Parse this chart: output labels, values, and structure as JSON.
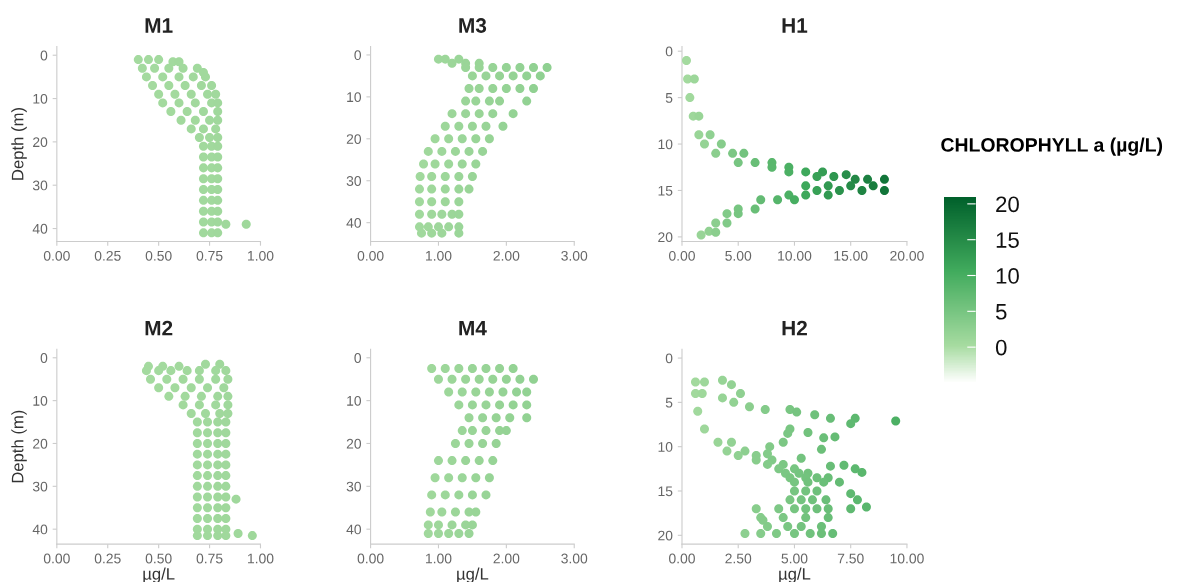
{
  "chart_data": [
    {
      "type": "scatter",
      "title": "M1",
      "ylabel": "Depth (m)",
      "marker": "circle",
      "xlim": [
        0,
        1
      ],
      "ylim": [
        43,
        -2
      ],
      "xticks": [
        {
          "value": 0,
          "label": "0.00"
        },
        {
          "value": 0.25,
          "label": "0.25"
        },
        {
          "value": 0.5,
          "label": "0.50"
        },
        {
          "value": 0.75,
          "label": "0.75"
        },
        {
          "value": 1,
          "label": "1.00"
        }
      ],
      "yticks": [
        0,
        10,
        20,
        30,
        40
      ],
      "x": [
        0.4,
        0.45,
        0.5,
        0.57,
        0.6,
        0.42,
        0.48,
        0.55,
        0.62,
        0.69,
        0.72,
        0.44,
        0.52,
        0.6,
        0.67,
        0.73,
        0.47,
        0.55,
        0.63,
        0.71,
        0.76,
        0.5,
        0.58,
        0.66,
        0.74,
        0.78,
        0.52,
        0.6,
        0.68,
        0.76,
        0.79,
        0.56,
        0.64,
        0.72,
        0.79,
        0.61,
        0.68,
        0.75,
        0.79,
        0.66,
        0.72,
        0.78,
        0.7,
        0.75,
        0.79,
        0.72,
        0.76,
        0.79,
        0.72,
        0.76,
        0.79,
        0.72,
        0.76,
        0.79,
        0.72,
        0.76,
        0.79,
        0.72,
        0.76,
        0.79,
        0.72,
        0.76,
        0.79,
        0.72,
        0.76,
        0.79,
        0.72,
        0.76,
        0.79,
        0.72,
        0.76,
        0.79,
        0.83,
        0.93
      ],
      "values": [
        1,
        1,
        1,
        1.5,
        1.5,
        3,
        3,
        3,
        3,
        3,
        4,
        5,
        5,
        5,
        5,
        5,
        7,
        7,
        7,
        7,
        7,
        9,
        9,
        9,
        9,
        9,
        11,
        11,
        11,
        11,
        11,
        13,
        13,
        13,
        13,
        15,
        15,
        15,
        15,
        17,
        17,
        17,
        19,
        19,
        19,
        21,
        21,
        21,
        23.5,
        23.5,
        23.5,
        26,
        26,
        26,
        28.5,
        28.5,
        28.5,
        31,
        31,
        31,
        33.5,
        33.5,
        33.5,
        36,
        36,
        36,
        38.5,
        38.5,
        38.5,
        41,
        41,
        41,
        39,
        39
      ]
    },
    {
      "type": "scatter",
      "title": "M3",
      "marker": "circle",
      "xlim": [
        0,
        3
      ],
      "ylim": [
        44.5,
        -2
      ],
      "xticks": [
        {
          "value": 0,
          "label": "0.00"
        },
        {
          "value": 1,
          "label": "1.00"
        },
        {
          "value": 2,
          "label": "2.00"
        },
        {
          "value": 3,
          "label": "3.00"
        }
      ],
      "yticks": [
        0,
        10,
        20,
        30,
        40
      ],
      "x": [
        1.0,
        1.1,
        1.3,
        1.2,
        1.4,
        1.6,
        1.4,
        1.6,
        1.8,
        2.0,
        2.2,
        2.4,
        2.6,
        1.5,
        1.7,
        1.9,
        2.1,
        2.3,
        2.5,
        1.45,
        1.6,
        1.8,
        2.0,
        2.2,
        2.4,
        1.4,
        1.55,
        1.75,
        1.9,
        2.3,
        1.2,
        1.4,
        1.6,
        1.8,
        2.1,
        1.1,
        1.3,
        1.5,
        1.7,
        1.95,
        0.95,
        1.15,
        1.35,
        1.55,
        1.75,
        0.85,
        1.05,
        1.25,
        1.45,
        1.65,
        0.78,
        0.95,
        1.15,
        1.35,
        1.55,
        0.73,
        0.9,
        1.1,
        1.3,
        1.5,
        0.72,
        0.9,
        1.1,
        1.3,
        1.45,
        0.72,
        0.9,
        1.1,
        1.3,
        0.72,
        0.9,
        1.05,
        1.2,
        1.3,
        0.72,
        0.85,
        1.0,
        1.15,
        1.3,
        0.75,
        0.9,
        1.05,
        1.3
      ],
      "values": [
        1,
        1,
        1,
        2,
        2,
        2,
        3,
        3,
        3,
        3,
        3,
        3,
        3,
        5,
        5,
        5,
        5,
        5,
        5,
        8,
        8,
        8,
        8,
        8,
        8,
        11,
        11,
        11,
        11,
        11,
        14,
        14,
        14,
        14,
        14,
        17,
        17,
        17,
        17,
        17,
        20,
        20,
        20,
        20,
        20,
        23,
        23,
        23,
        23,
        23,
        26,
        26,
        26,
        26,
        26,
        29,
        29,
        29,
        29,
        29,
        32,
        32,
        32,
        32,
        32,
        35,
        35,
        35,
        35,
        38,
        38,
        38,
        38,
        38,
        41,
        41,
        41,
        41,
        41,
        42.5,
        42.5,
        42.5,
        42.5
      ]
    },
    {
      "type": "scatter",
      "title": "H1",
      "marker": "circle",
      "xlim": [
        0,
        20
      ],
      "ylim": [
        20.5,
        -0.5
      ],
      "clim": [
        -5,
        21
      ],
      "clabel": "CHLOROPHYLL a (µg/L)",
      "cticks": [
        0,
        5,
        10,
        15,
        20
      ],
      "xticks": [
        {
          "value": 0,
          "label": "0.00"
        },
        {
          "value": 5,
          "label": "5.00"
        },
        {
          "value": 10,
          "label": "10.00"
        },
        {
          "value": 15,
          "label": "15.00"
        },
        {
          "value": 20,
          "label": "20.00"
        }
      ],
      "yticks": [
        0,
        5,
        10,
        15,
        20
      ],
      "x": [
        0.4,
        0.5,
        1.1,
        0.7,
        1.0,
        1.5,
        1.5,
        2.5,
        2.0,
        3.5,
        3.0,
        4.5,
        5.5,
        5.0,
        6.5,
        8.0,
        8.0,
        9.5,
        9.5,
        11.0,
        12.5,
        12.0,
        13.5,
        14.6,
        15.4,
        16.5,
        18.0,
        11.0,
        13.0,
        15.0,
        17.0,
        12.0,
        14.0,
        16.0,
        18.0,
        9.5,
        11.0,
        13.0,
        7.0,
        8.5,
        10.0,
        5.0,
        6.5,
        4.0,
        5.0,
        3.0,
        4.0,
        2.4,
        3.0,
        1.7
      ],
      "values": [
        1,
        3,
        3,
        5,
        7,
        7,
        9,
        9,
        10,
        10,
        11,
        11,
        11,
        12,
        12,
        12,
        12.5,
        12.5,
        13,
        13,
        13,
        13.5,
        13.5,
        13.3,
        13.8,
        13.8,
        13.8,
        14.5,
        14.5,
        14.5,
        14.5,
        15,
        15,
        15,
        15,
        15.5,
        15.5,
        15.5,
        16,
        16,
        16,
        17,
        17,
        17.5,
        17.5,
        18.5,
        18.5,
        19.4,
        19.5,
        19.8
      ],
      "cvalues": [
        0.4,
        0.5,
        1.1,
        0.7,
        1.0,
        1.5,
        1.5,
        2.5,
        2.0,
        3.5,
        3.0,
        4.5,
        5.5,
        5.0,
        6.5,
        8.0,
        8.0,
        9.5,
        9.5,
        11.0,
        12.5,
        12.0,
        13.5,
        14.6,
        15.4,
        16.5,
        18.0,
        11.0,
        13.0,
        15.0,
        17.0,
        12.0,
        14.0,
        16.0,
        18.0,
        9.5,
        11.0,
        13.0,
        7.0,
        8.5,
        10.0,
        5.0,
        6.5,
        4.0,
        5.0,
        3.0,
        4.0,
        2.4,
        3.0,
        1.7
      ]
    },
    {
      "type": "scatter",
      "title": "M2",
      "xlabel": "µg/L",
      "ylabel": "Depth (m)",
      "marker": "circle",
      "xlim": [
        0,
        1
      ],
      "ylim": [
        43.5,
        -2
      ],
      "xticks": [
        {
          "value": 0,
          "label": "0.00"
        },
        {
          "value": 0.25,
          "label": "0.25"
        },
        {
          "value": 0.5,
          "label": "0.50"
        },
        {
          "value": 0.75,
          "label": "0.75"
        },
        {
          "value": 1,
          "label": "1.00"
        }
      ],
      "yticks": [
        0,
        10,
        20,
        30,
        40
      ],
      "x": [
        0.45,
        0.52,
        0.6,
        0.73,
        0.8,
        0.44,
        0.5,
        0.56,
        0.64,
        0.7,
        0.78,
        0.83,
        0.46,
        0.54,
        0.62,
        0.7,
        0.78,
        0.84,
        0.5,
        0.58,
        0.66,
        0.74,
        0.82,
        0.55,
        0.63,
        0.71,
        0.79,
        0.84,
        0.62,
        0.7,
        0.78,
        0.84,
        0.66,
        0.73,
        0.8,
        0.84,
        0.69,
        0.74,
        0.79,
        0.83,
        0.69,
        0.74,
        0.79,
        0.83,
        0.69,
        0.74,
        0.79,
        0.83,
        0.69,
        0.74,
        0.79,
        0.83,
        0.69,
        0.74,
        0.79,
        0.83,
        0.69,
        0.74,
        0.79,
        0.83,
        0.69,
        0.74,
        0.79,
        0.83,
        0.69,
        0.74,
        0.79,
        0.83,
        0.69,
        0.74,
        0.79,
        0.83,
        0.69,
        0.74,
        0.79,
        0.83,
        0.69,
        0.74,
        0.79,
        0.83,
        0.69,
        0.74,
        0.79,
        0.83,
        0.88,
        0.89,
        0.96
      ],
      "values": [
        2,
        2,
        2,
        1.5,
        1.5,
        3,
        3,
        3,
        3,
        3,
        3,
        3,
        5,
        5,
        5,
        5,
        5,
        5,
        7,
        7,
        7,
        7,
        7,
        9,
        9,
        9,
        9,
        9,
        11,
        11,
        11,
        11,
        13,
        13,
        13,
        13,
        15,
        15,
        15,
        15,
        17.5,
        17.5,
        17.5,
        17.5,
        20,
        20,
        20,
        20,
        22.5,
        22.5,
        22.5,
        22.5,
        25,
        25,
        25,
        25,
        27.5,
        27.5,
        27.5,
        27.5,
        30,
        30,
        30,
        30,
        32.5,
        32.5,
        32.5,
        32.5,
        35,
        35,
        35,
        35,
        37.5,
        37.5,
        37.5,
        37.5,
        40,
        40,
        40,
        40,
        41.5,
        41.5,
        41.5,
        41.5,
        33,
        41,
        41.5
      ]
    },
    {
      "type": "scatter",
      "title": "M4",
      "xlabel": "µg/L",
      "marker": "circle",
      "xlim": [
        0,
        3
      ],
      "ylim": [
        43.5,
        -2
      ],
      "xticks": [
        {
          "value": 0,
          "label": "0.00"
        },
        {
          "value": 1,
          "label": "1.00"
        },
        {
          "value": 2,
          "label": "2.00"
        },
        {
          "value": 3,
          "label": "3.00"
        }
      ],
      "yticks": [
        0,
        10,
        20,
        30,
        40
      ],
      "x": [
        0.9,
        1.1,
        1.3,
        1.5,
        1.7,
        1.9,
        2.1,
        1.0,
        1.2,
        1.4,
        1.6,
        1.8,
        2.0,
        2.2,
        2.4,
        1.15,
        1.35,
        1.55,
        1.75,
        1.95,
        2.15,
        2.3,
        1.3,
        1.5,
        1.7,
        1.9,
        2.1,
        2.3,
        1.45,
        1.65,
        1.85,
        2.05,
        2.3,
        1.35,
        1.5,
        1.7,
        1.9,
        2.0,
        1.25,
        1.45,
        1.65,
        1.85,
        1.0,
        1.2,
        1.4,
        1.6,
        1.8,
        0.95,
        1.15,
        1.35,
        1.55,
        1.75,
        0.9,
        1.1,
        1.3,
        1.5,
        1.7,
        0.88,
        1.05,
        1.25,
        1.45,
        1.55,
        0.85,
        1.0,
        1.2,
        1.4,
        1.5,
        0.85,
        1.0,
        1.15,
        1.3,
        1.45
      ],
      "values": [
        2.5,
        2.5,
        2.5,
        2.5,
        2.5,
        2.5,
        2.5,
        5,
        5,
        5,
        5,
        5,
        5,
        5,
        5,
        8,
        8,
        8,
        8,
        8,
        8,
        8,
        11,
        11,
        11,
        11,
        11,
        11,
        14,
        14,
        14,
        14,
        14,
        17,
        17,
        17,
        17,
        17,
        20,
        20,
        20,
        20,
        24,
        24,
        24,
        24,
        24,
        28,
        28,
        28,
        28,
        28,
        32,
        32,
        32,
        32,
        32,
        36,
        36,
        36,
        36,
        36,
        39,
        39,
        39,
        39,
        39,
        41,
        41,
        41,
        41,
        41
      ]
    },
    {
      "type": "scatter",
      "title": "H2",
      "xlabel": "µg/L",
      "marker": "circle",
      "xlim": [
        0,
        10
      ],
      "ylim": [
        21,
        -1
      ],
      "xticks": [
        {
          "value": 0,
          "label": "0.00"
        },
        {
          "value": 2.5,
          "label": "2.50"
        },
        {
          "value": 5,
          "label": "5.00"
        },
        {
          "value": 7.5,
          "label": "7.50"
        },
        {
          "value": 10,
          "label": "10.00"
        }
      ],
      "yticks": [
        0,
        5,
        10,
        15,
        20
      ],
      "x": [
        0.6,
        1.0,
        0.6,
        0.9,
        0.7,
        1.0,
        1.6,
        2.2,
        2.0,
        2.8,
        2.5,
        3.3,
        3.3,
        4.0,
        3.8,
        4.5,
        4.3,
        5.0,
        4.6,
        5.2,
        5.6,
        4.8,
        5.5,
        6.0,
        6.5,
        5.0,
        5.6,
        6.3,
        7.0,
        5.0,
        5.5,
        6.0,
        4.8,
        5.3,
        5.8,
        6.4,
        4.3,
        5.0,
        5.5,
        6.0,
        6.5,
        7.5,
        3.5,
        4.5,
        5.5,
        6.5,
        3.8,
        4.7,
        5.3,
        6.2,
        2.8,
        3.5,
        4.2,
        5.0,
        5.7,
        6.2,
        6.7,
        1.8,
        2.2,
        2.6,
        1.8,
        2.3,
        3.0,
        3.7,
        4.8,
        5.1,
        5.9,
        6.6,
        7.7,
        9.5,
        7.5,
        4.8,
        4.7,
        5.6,
        6.3,
        6.8,
        4.5,
        6.2,
        3.9,
        3.8,
        5.3,
        6.6,
        7.2,
        7.7,
        8.0,
        7.8,
        8.2,
        7.5,
        3.3,
        3.6
      ],
      "values": [
        2.7,
        2.7,
        4,
        4,
        6,
        8,
        9.5,
        9.5,
        10.5,
        10.5,
        11,
        11,
        11.5,
        11.5,
        12,
        12,
        12.5,
        12.5,
        13,
        13,
        13,
        13.5,
        13.5,
        13.5,
        13.5,
        14,
        14,
        14,
        14,
        15,
        15,
        15,
        16,
        16,
        16,
        16,
        17,
        17,
        17,
        17,
        17,
        17,
        18,
        18,
        18,
        18,
        19,
        19,
        19,
        19,
        19.8,
        19.8,
        19.8,
        19.8,
        19.8,
        19.8,
        19.8,
        2.5,
        3,
        4,
        4.5,
        5,
        5.5,
        5.8,
        5.8,
        6.1,
        6.4,
        6.8,
        6.8,
        7.1,
        7.4,
        8,
        8.5,
        8.4,
        9,
        8.9,
        9.5,
        10.3,
        10,
        10.8,
        11.3,
        12.2,
        12.1,
        12.5,
        12.9,
        16,
        16.8,
        15.3,
        17,
        18.3
      ]
    }
  ]
}
